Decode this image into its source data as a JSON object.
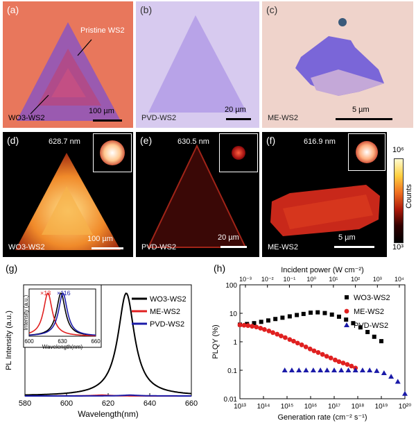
{
  "panels": {
    "a": {
      "label": "(a)",
      "annotation": "Pristine WS2",
      "sample": "WO3-WS2",
      "scale": "100 µm"
    },
    "b": {
      "label": "(b)",
      "sample": "PVD-WS2",
      "scale": "20 µm"
    },
    "c": {
      "label": "(c)",
      "sample": "ME-WS2",
      "scale": "5 µm"
    },
    "d": {
      "label": "(d)",
      "wavelength": "628.7 nm",
      "sample": "WO3-WS2",
      "scale": "100 µm"
    },
    "e": {
      "label": "(e)",
      "wavelength": "630.5 nm",
      "sample": "PVD-WS2",
      "scale": "20 µm"
    },
    "f": {
      "label": "(f)",
      "wavelength": "616.9 nm",
      "sample": "ME-WS2",
      "scale": "5 µm"
    },
    "g": {
      "label": "(g)"
    },
    "h": {
      "label": "(h)"
    }
  },
  "colorbar": {
    "top": "10⁶",
    "bottom": "10³",
    "title": "Counts"
  },
  "chart_data": [
    {
      "type": "line",
      "panel": "g",
      "xlabel": "Wavelength(nm)",
      "ylabel": "PL Intensity (a.u.)",
      "xlim": [
        580,
        660
      ],
      "xticks": [
        580,
        600,
        620,
        640,
        660
      ],
      "legend": [
        "WO3-WS2",
        "ME-WS2",
        "PVD-WS2"
      ],
      "colors": [
        "#000000",
        "#e02020",
        "#1a1aa8"
      ],
      "series": [
        {
          "name": "WO3-WS2",
          "peak": 628.7,
          "height": 1.0
        },
        {
          "name": "ME-WS2",
          "peak": 616.9,
          "height": 0.008
        },
        {
          "name": "PVD-WS2",
          "peak": 630.5,
          "height": 0.008
        }
      ],
      "inset": {
        "xlabel": "Wavelength(nm)",
        "ylabel": "Intensity (a.u.)",
        "xticks": [
          600,
          630,
          660
        ],
        "annotations": [
          "×13",
          "×116"
        ]
      }
    },
    {
      "type": "scatter",
      "panel": "h",
      "xlabel": "Generation rate (cm⁻² s⁻¹)",
      "x2label": "Incident power (W cm⁻²)",
      "ylabel": "PLQY (%)",
      "xscale": "log",
      "yscale": "log",
      "xlim": [
        10000000000000.0,
        1e+20
      ],
      "ylim": [
        0.01,
        100
      ],
      "legend": [
        "WO3-WS2",
        "ME-WS2",
        "PVD-WS2"
      ],
      "series": [
        {
          "name": "WO3-WS2",
          "marker": "square",
          "color": "#000000",
          "x": [
            10000000000000.0,
            20000000000000.0,
            40000000000000.0,
            80000000000000.0,
            160000000000000.0,
            320000000000000.0,
            640000000000000.0,
            1300000000000000.0,
            2600000000000000.0,
            5000000000000000.0,
            1e+16,
            2e+16,
            4e+16,
            8e+16,
            1.6e+17,
            3.2e+17,
            6.4e+17,
            1.3e+18,
            2.6e+18,
            5e+18,
            1e+19
          ],
          "y": [
            4.0,
            4.2,
            4.5,
            5.0,
            5.6,
            6.3,
            7.0,
            7.8,
            8.7,
            9.5,
            10.5,
            10.8,
            10.2,
            9.0,
            7.6,
            6.0,
            4.5,
            3.2,
            2.2,
            1.5,
            1.05
          ]
        },
        {
          "name": "ME-WS2",
          "marker": "circle",
          "color": "#e02020",
          "x": [
            10000000000000.0,
            15000000000000.0,
            22000000000000.0,
            33000000000000.0,
            50000000000000.0,
            75000000000000.0,
            110000000000000.0,
            170000000000000.0,
            250000000000000.0,
            380000000000000.0,
            560000000000000.0,
            840000000000000.0,
            1300000000000000.0,
            1900000000000000.0,
            2800000000000000.0,
            4200000000000000.0,
            6300000000000000.0,
            9500000000000000.0,
            1.4e+16,
            2.1e+16,
            3.2e+16,
            4.8e+16,
            7.2e+16,
            1.1e+17,
            1.6e+17,
            2.4e+17,
            3.6e+17,
            5.4e+17,
            8e+17
          ],
          "y": [
            3.9,
            3.8,
            3.7,
            3.5,
            3.3,
            3.0,
            2.7,
            2.4,
            2.1,
            1.85,
            1.6,
            1.4,
            1.2,
            1.05,
            0.9,
            0.78,
            0.66,
            0.56,
            0.48,
            0.42,
            0.36,
            0.31,
            0.27,
            0.23,
            0.2,
            0.18,
            0.16,
            0.14,
            0.12
          ]
        },
        {
          "name": "PVD-WS2",
          "marker": "triangle",
          "color": "#1a1aa8",
          "x": [
            800000000000000.0,
            1600000000000000.0,
            3200000000000000.0,
            6400000000000000.0,
            1.3e+16,
            2.6e+16,
            5e+16,
            1e+17,
            2e+17,
            4e+17,
            8e+17,
            1.6e+18,
            3.2e+18,
            6.4e+18,
            1.3e+19,
            2.6e+19,
            5e+19,
            1e+20
          ],
          "y": [
            0.1,
            0.1,
            0.1,
            0.1,
            0.1,
            0.1,
            0.1,
            0.1,
            0.1,
            0.1,
            0.1,
            0.1,
            0.1,
            0.095,
            0.08,
            0.06,
            0.04,
            0.015
          ]
        }
      ],
      "xticks": [
        "10¹³",
        "10¹⁴",
        "10¹⁵",
        "10¹⁶",
        "10¹⁷",
        "10¹⁸",
        "10¹⁹",
        "10²⁰"
      ],
      "x2ticks": [
        "10⁻³",
        "10⁻²",
        "10⁻¹",
        "10⁰",
        "10¹",
        "10²",
        "10³",
        "10⁴"
      ],
      "yticks": [
        "0.01",
        "0.1",
        "1",
        "10",
        "100"
      ]
    }
  ]
}
